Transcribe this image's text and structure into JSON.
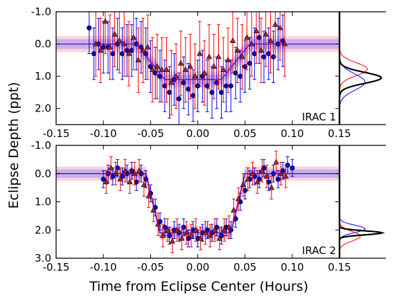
{
  "figure": {
    "ylabel": "Eclipse Depth (ppt)",
    "xlabel": "Time from Eclipse Center (Hours)"
  },
  "colors": {
    "ch1_series": "#0000ff",
    "ch2_series": "#ff0000",
    "ch1_marker_fill": "#0000cc",
    "ch2_marker_fill": "#b22222",
    "model": "#000000",
    "ch1_band": "#8f8fff",
    "ch2_band": "#ffb6c1"
  },
  "chart_data": [
    {
      "type": "scatter",
      "label": "IRAC 1",
      "xlim": [
        -0.15,
        0.15
      ],
      "ylim": [
        2.5,
        -1.0
      ],
      "xticks": [
        "-0.15",
        "-0.10",
        "-0.05",
        "0.00",
        "0.05",
        "0.10",
        "0.15"
      ],
      "yticks": [
        {
          "v": -1.0,
          "t": "-1.0"
        },
        {
          "v": 0.0,
          "t": "0.0"
        },
        {
          "v": 1.0,
          "t": "1.0"
        },
        {
          "v": 2.0,
          "t": "2.0"
        }
      ],
      "model": {
        "depth": 1.1,
        "t1": -0.065,
        "t2": -0.035,
        "t3": 0.025,
        "t4": 0.055
      },
      "series": [
        {
          "marker": "circle",
          "x": [
            -0.115,
            -0.11,
            -0.105,
            -0.1,
            -0.095,
            -0.09,
            -0.085,
            -0.08,
            -0.075,
            -0.07,
            -0.065,
            -0.06,
            -0.055,
            -0.05,
            -0.045,
            -0.04,
            -0.035,
            -0.03,
            -0.025,
            -0.02,
            -0.015,
            -0.01,
            -0.005,
            0.0,
            0.005,
            0.01,
            0.015,
            0.02,
            0.025,
            0.03,
            0.035,
            0.04,
            0.045,
            0.05,
            0.055,
            0.06,
            0.065,
            0.07,
            0.075,
            0.08,
            0.085,
            0.09
          ],
          "y": [
            -0.5,
            0.3,
            0.0,
            0.1,
            0.1,
            0.3,
            0.0,
            0.3,
            0.2,
            0.2,
            0.0,
            0.1,
            0.3,
            0.7,
            0.9,
            1.0,
            1.3,
            1.5,
            1.1,
            1.7,
            1.2,
            1.4,
            1.6,
            1.3,
            1.0,
            1.3,
            1.5,
            1.2,
            1.5,
            1.3,
            1.3,
            0.9,
            1.0,
            0.7,
            0.6,
            0.3,
            -0.2,
            0.4,
            0.3,
            0.4,
            0.0,
            -0.1
          ],
          "err": [
            0.8,
            0.8,
            0.8,
            0.8,
            0.8,
            0.8,
            0.8,
            0.8,
            0.8,
            0.8,
            0.8,
            0.8,
            0.8,
            0.8,
            0.8,
            0.8,
            0.8,
            0.8,
            0.8,
            0.8,
            0.8,
            0.8,
            0.8,
            0.8,
            0.8,
            0.8,
            0.8,
            0.8,
            0.8,
            0.8,
            0.8,
            0.8,
            0.8,
            0.8,
            0.8,
            0.8,
            0.8,
            0.8,
            0.8,
            0.8,
            0.8,
            0.8
          ]
        },
        {
          "marker": "triangle",
          "x": [
            -0.108,
            -0.103,
            -0.098,
            -0.093,
            -0.088,
            -0.083,
            -0.078,
            -0.073,
            -0.068,
            -0.063,
            -0.058,
            -0.053,
            -0.048,
            -0.043,
            -0.038,
            -0.033,
            -0.028,
            -0.023,
            -0.018,
            -0.013,
            -0.008,
            -0.003,
            0.002,
            0.007,
            0.012,
            0.017,
            0.022,
            0.027,
            0.032,
            0.037,
            0.042,
            0.047,
            0.052,
            0.057,
            0.062,
            0.067,
            0.072,
            0.077,
            0.082,
            0.087,
            0.092
          ],
          "y": [
            0.0,
            0.2,
            -0.7,
            0.1,
            -0.3,
            -0.1,
            0.0,
            0.3,
            -0.2,
            0.5,
            0.2,
            0.1,
            0.8,
            0.7,
            0.8,
            0.8,
            1.2,
            1.0,
            0.6,
            0.8,
            0.7,
            1.0,
            0.3,
            0.9,
            0.4,
            0.7,
            0.4,
            0.8,
            0.5,
            -0.1,
            0.2,
            0.4,
            -0.2,
            0.0,
            -0.4,
            0.2,
            -0.3,
            -0.1,
            -0.6,
            -0.5,
            0.0
          ],
          "err": [
            1.0,
            1.0,
            1.0,
            1.0,
            1.0,
            1.0,
            1.0,
            1.0,
            1.0,
            1.0,
            1.0,
            1.0,
            1.0,
            1.0,
            1.0,
            1.0,
            1.0,
            1.0,
            1.0,
            1.0,
            1.0,
            1.0,
            1.0,
            1.0,
            1.0,
            1.0,
            1.0,
            1.0,
            1.0,
            1.0,
            1.0,
            1.0,
            1.0,
            1.0,
            1.0,
            1.0,
            1.0,
            1.0,
            1.0,
            1.0,
            1.0
          ]
        }
      ]
    },
    {
      "type": "scatter",
      "label": "IRAC 2",
      "xlim": [
        -0.15,
        0.15
      ],
      "ylim": [
        3.0,
        -1.0
      ],
      "xticks": [
        "-0.15",
        "-0.10",
        "-0.05",
        "0.00",
        "0.05",
        "0.10",
        "0.15"
      ],
      "yticks": [
        {
          "v": -1.0,
          "t": "-1.0"
        },
        {
          "v": 0.0,
          "t": "0.0"
        },
        {
          "v": 1.0,
          "t": "1.0"
        },
        {
          "v": 2.0,
          "t": "2.0"
        },
        {
          "v": 3.0,
          "t": "3.0"
        }
      ],
      "model": {
        "depth": 2.1,
        "t1": -0.055,
        "t2": -0.04,
        "t3": 0.035,
        "t4": 0.05
      },
      "series": [
        {
          "marker": "circle",
          "x": [
            -0.1,
            -0.095,
            -0.09,
            -0.085,
            -0.08,
            -0.075,
            -0.07,
            -0.065,
            -0.06,
            -0.055,
            -0.05,
            -0.045,
            -0.04,
            -0.035,
            -0.03,
            -0.025,
            -0.02,
            -0.015,
            -0.01,
            -0.005,
            0.0,
            0.005,
            0.01,
            0.015,
            0.02,
            0.025,
            0.03,
            0.035,
            0.04,
            0.045,
            0.05,
            0.055,
            0.06,
            0.065,
            0.07,
            0.075,
            0.08,
            0.085,
            0.09,
            0.095,
            0.1
          ],
          "y": [
            0.2,
            0.0,
            0.1,
            -0.2,
            0.1,
            0.0,
            -0.1,
            0.3,
            0.0,
            0.2,
            0.7,
            1.2,
            1.7,
            1.9,
            2.2,
            2.0,
            2.1,
            1.9,
            2.3,
            2.0,
            2.3,
            2.1,
            2.0,
            2.1,
            1.9,
            2.2,
            1.9,
            2.0,
            1.6,
            1.0,
            0.6,
            0.2,
            0.1,
            0.2,
            -0.2,
            0.3,
            0.0,
            0.2,
            -0.1,
            -0.3,
            -0.2
          ],
          "err": [
            0.3,
            0.3,
            0.3,
            0.3,
            0.3,
            0.3,
            0.3,
            0.3,
            0.3,
            0.3,
            0.3,
            0.3,
            0.3,
            0.3,
            0.3,
            0.3,
            0.3,
            0.3,
            0.3,
            0.3,
            0.3,
            0.3,
            0.3,
            0.3,
            0.3,
            0.3,
            0.3,
            0.3,
            0.3,
            0.3,
            0.3,
            0.3,
            0.3,
            0.3,
            0.3,
            0.3,
            0.3,
            0.3,
            0.3,
            0.3,
            0.3
          ]
        },
        {
          "marker": "triangle",
          "x": [
            -0.097,
            -0.092,
            -0.087,
            -0.082,
            -0.077,
            -0.072,
            -0.067,
            -0.062,
            -0.057,
            -0.052,
            -0.047,
            -0.042,
            -0.037,
            -0.032,
            -0.027,
            -0.022,
            -0.017,
            -0.012,
            -0.007,
            -0.002,
            0.003,
            0.008,
            0.013,
            0.018,
            0.023,
            0.028,
            0.033,
            0.038,
            0.043,
            0.048,
            0.053,
            0.058,
            0.063,
            0.068,
            0.073,
            0.078,
            0.083,
            0.088,
            0.093
          ],
          "y": [
            0.3,
            -0.2,
            0.0,
            0.2,
            -0.1,
            0.3,
            0.0,
            -0.1,
            0.4,
            0.8,
            1.3,
            1.8,
            2.2,
            2.0,
            2.4,
            2.0,
            2.3,
            2.1,
            2.2,
            2.0,
            2.3,
            2.1,
            2.2,
            2.0,
            2.3,
            2.0,
            1.9,
            1.3,
            0.9,
            0.4,
            0.2,
            0.0,
            0.3,
            -0.1,
            0.1,
            0.5,
            -0.4,
            0.0,
            0.1
          ],
          "err": [
            0.4,
            0.4,
            0.4,
            0.4,
            0.4,
            0.4,
            0.4,
            0.4,
            0.4,
            0.4,
            0.4,
            0.4,
            0.4,
            0.4,
            0.4,
            0.4,
            0.4,
            0.4,
            0.4,
            0.4,
            0.4,
            0.4,
            0.4,
            0.4,
            0.4,
            0.4,
            0.4,
            0.4,
            0.4,
            0.4,
            0.4,
            0.4,
            0.4,
            0.4,
            0.4,
            0.4,
            0.4,
            0.4,
            0.4
          ]
        }
      ]
    }
  ],
  "posteriors": [
    {
      "panel": 0,
      "curves": [
        {
          "color": "#ff0000",
          "mean": 0.78,
          "sd": 0.2,
          "amp": 0.6
        },
        {
          "color": "#0000ff",
          "mean": 1.18,
          "sd": 0.25,
          "amp": 0.55
        },
        {
          "color": "#000000",
          "mean": 1.05,
          "sd": 0.17,
          "amp": 0.9
        }
      ]
    },
    {
      "panel": 1,
      "curves": [
        {
          "color": "#0000ff",
          "mean": 1.96,
          "sd": 0.13,
          "amp": 0.55
        },
        {
          "color": "#ff0000",
          "mean": 2.22,
          "sd": 0.17,
          "amp": 0.45
        },
        {
          "color": "#000000",
          "mean": 2.1,
          "sd": 0.07,
          "amp": 0.92
        }
      ]
    }
  ]
}
